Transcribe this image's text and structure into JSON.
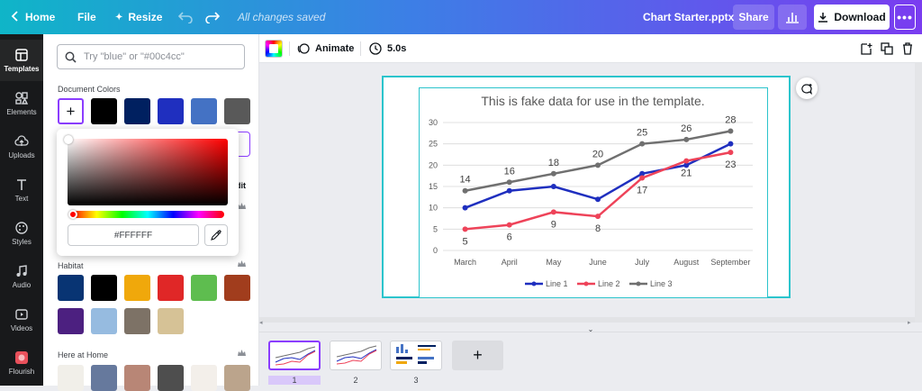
{
  "topbar": {
    "home": "Home",
    "file": "File",
    "resize": "Resize",
    "save_status": "All changes saved",
    "doc_title": "Chart Starter.pptx",
    "share": "Share",
    "download": "Download"
  },
  "rail": {
    "items": [
      {
        "label": "Templates",
        "icon": "templates-icon"
      },
      {
        "label": "Elements",
        "icon": "elements-icon"
      },
      {
        "label": "Uploads",
        "icon": "uploads-icon"
      },
      {
        "label": "Text",
        "icon": "text-icon"
      },
      {
        "label": "Styles",
        "icon": "styles-icon"
      },
      {
        "label": "Audio",
        "icon": "audio-icon"
      },
      {
        "label": "Videos",
        "icon": "videos-icon"
      },
      {
        "label": "Flourish",
        "icon": "flourish-icon"
      }
    ]
  },
  "panel": {
    "search_placeholder": "Try \"blue\" or \"#00c4cc\"",
    "document_colors_title": "Document Colors",
    "document_colors": [
      "#000000",
      "#002060",
      "#1f2fbf",
      "#4472c4",
      "#595959"
    ],
    "edit_fragment": "dit",
    "habitat_title": "Habitat",
    "habitat_colors": [
      "#083473",
      "#000000",
      "#f0a80b",
      "#e02727",
      "#5ebd4f",
      "#a13d1d",
      "#4c2080",
      "#96bbe0",
      "#7d7266",
      "#d6c296"
    ],
    "home_title": "Here at Home",
    "home_colors": [
      "#f1efe9",
      "#66799d",
      "#b88676",
      "#4e4e4e",
      "#f3efea",
      "#bba48c"
    ]
  },
  "picker": {
    "hex_value": "#FFFFFF"
  },
  "canvasbar": {
    "animate": "Animate",
    "duration": "5.0s"
  },
  "chart_data": {
    "type": "line",
    "title": "This is fake data for use in the template.",
    "categories": [
      "March",
      "April",
      "May",
      "June",
      "July",
      "August",
      "September"
    ],
    "ylim": [
      0,
      30
    ],
    "yticks": [
      0,
      5,
      10,
      15,
      20,
      25,
      30
    ],
    "grid": true,
    "legend": "bottom",
    "series": [
      {
        "name": "Line 1",
        "color": "#1f2fbf",
        "values": [
          10,
          14,
          15,
          12,
          18,
          20,
          25
        ],
        "labels": false
      },
      {
        "name": "Line 2",
        "color": "#ee4359",
        "values": [
          5,
          6,
          9,
          8,
          17,
          21,
          23
        ],
        "labels": true
      },
      {
        "name": "Line 3",
        "color": "#707070",
        "values": [
          14,
          16,
          18,
          20,
          25,
          26,
          28
        ],
        "labels": true
      }
    ]
  },
  "pages": [
    {
      "number": "1"
    },
    {
      "number": "2"
    },
    {
      "number": "3"
    }
  ]
}
